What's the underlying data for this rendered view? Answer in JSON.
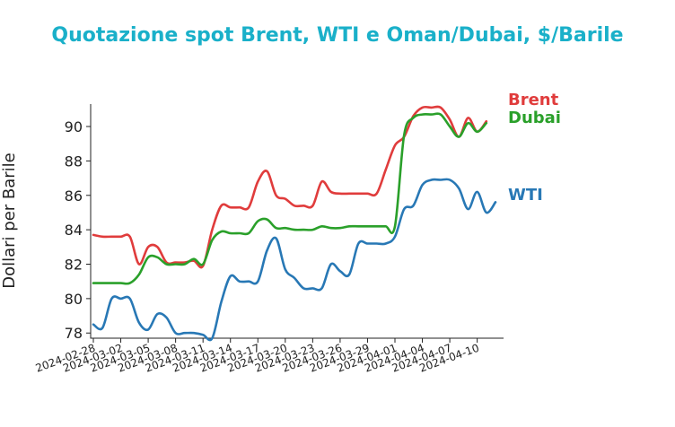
{
  "chart_data": {
    "type": "line",
    "title": "Quotazione spot Brent, WTI e Oman/Dubai, $/Barile",
    "xlabel": "",
    "ylabel": "Dollari per Barile",
    "xlim": [
      "2024-02-28",
      "2024-04-12"
    ],
    "ylim": [
      77.7,
      91.2
    ],
    "yticks": [
      78,
      80,
      82,
      84,
      86,
      88,
      90
    ],
    "xticks": [
      "2024-02-28",
      "2024-03-02",
      "2024-03-05",
      "2024-03-08",
      "2024-03-11",
      "2024-03-14",
      "2024-03-17",
      "2024-03-20",
      "2024-03-23",
      "2024-03-26",
      "2024-03-29",
      "2024-04-01",
      "2024-04-04",
      "2024-04-07",
      "2024-04-10"
    ],
    "grid": false,
    "legend": "right",
    "colors": {
      "Brent": "#e03c3c",
      "WTI": "#2878b5",
      "Dubai": "#2aa02a"
    },
    "series": [
      {
        "name": "Brent",
        "points": [
          [
            "2024-02-28",
            83.7
          ],
          [
            "2024-02-29",
            83.6
          ],
          [
            "2024-03-01",
            83.6
          ],
          [
            "2024-03-02",
            83.6
          ],
          [
            "2024-03-03",
            83.6
          ],
          [
            "2024-03-04",
            82.0
          ],
          [
            "2024-03-05",
            83.0
          ],
          [
            "2024-03-06",
            83.0
          ],
          [
            "2024-03-07",
            82.1
          ],
          [
            "2024-03-08",
            82.1
          ],
          [
            "2024-03-09",
            82.1
          ],
          [
            "2024-03-10",
            82.2
          ],
          [
            "2024-03-11",
            81.9
          ],
          [
            "2024-03-12",
            84.0
          ],
          [
            "2024-03-13",
            85.4
          ],
          [
            "2024-03-14",
            85.3
          ],
          [
            "2024-03-15",
            85.3
          ],
          [
            "2024-03-16",
            85.3
          ],
          [
            "2024-03-17",
            86.8
          ],
          [
            "2024-03-18",
            87.4
          ],
          [
            "2024-03-19",
            86.0
          ],
          [
            "2024-03-20",
            85.8
          ],
          [
            "2024-03-21",
            85.4
          ],
          [
            "2024-03-22",
            85.4
          ],
          [
            "2024-03-23",
            85.4
          ],
          [
            "2024-03-24",
            86.8
          ],
          [
            "2024-03-25",
            86.2
          ],
          [
            "2024-03-26",
            86.1
          ],
          [
            "2024-03-27",
            86.1
          ],
          [
            "2024-03-28",
            86.1
          ],
          [
            "2024-03-29",
            86.1
          ],
          [
            "2024-03-30",
            86.1
          ],
          [
            "2024-03-31",
            87.5
          ],
          [
            "2024-04-01",
            88.9
          ],
          [
            "2024-04-02",
            89.4
          ],
          [
            "2024-04-03",
            90.6
          ],
          [
            "2024-04-04",
            91.1
          ],
          [
            "2024-04-05",
            91.1
          ],
          [
            "2024-04-06",
            91.1
          ],
          [
            "2024-04-07",
            90.4
          ],
          [
            "2024-04-08",
            89.4
          ],
          [
            "2024-04-09",
            90.5
          ],
          [
            "2024-04-10",
            89.7
          ],
          [
            "2024-04-11",
            90.3
          ]
        ]
      },
      {
        "name": "Dubai",
        "points": [
          [
            "2024-02-28",
            80.9
          ],
          [
            "2024-02-29",
            80.9
          ],
          [
            "2024-03-01",
            80.9
          ],
          [
            "2024-03-02",
            80.9
          ],
          [
            "2024-03-03",
            80.9
          ],
          [
            "2024-03-04",
            81.4
          ],
          [
            "2024-03-05",
            82.4
          ],
          [
            "2024-03-06",
            82.4
          ],
          [
            "2024-03-07",
            82.0
          ],
          [
            "2024-03-08",
            82.0
          ],
          [
            "2024-03-09",
            82.0
          ],
          [
            "2024-03-10",
            82.3
          ],
          [
            "2024-03-11",
            82.0
          ],
          [
            "2024-03-12",
            83.4
          ],
          [
            "2024-03-13",
            83.9
          ],
          [
            "2024-03-14",
            83.8
          ],
          [
            "2024-03-15",
            83.8
          ],
          [
            "2024-03-16",
            83.8
          ],
          [
            "2024-03-17",
            84.5
          ],
          [
            "2024-03-18",
            84.6
          ],
          [
            "2024-03-19",
            84.1
          ],
          [
            "2024-03-20",
            84.1
          ],
          [
            "2024-03-21",
            84.0
          ],
          [
            "2024-03-22",
            84.0
          ],
          [
            "2024-03-23",
            84.0
          ],
          [
            "2024-03-24",
            84.2
          ],
          [
            "2024-03-25",
            84.1
          ],
          [
            "2024-03-26",
            84.1
          ],
          [
            "2024-03-27",
            84.2
          ],
          [
            "2024-03-28",
            84.2
          ],
          [
            "2024-03-29",
            84.2
          ],
          [
            "2024-03-30",
            84.2
          ],
          [
            "2024-03-31",
            84.2
          ],
          [
            "2024-04-01",
            84.2
          ],
          [
            "2024-04-02",
            89.5
          ],
          [
            "2024-04-03",
            90.5
          ],
          [
            "2024-04-04",
            90.7
          ],
          [
            "2024-04-05",
            90.7
          ],
          [
            "2024-04-06",
            90.7
          ],
          [
            "2024-04-07",
            90.0
          ],
          [
            "2024-04-08",
            89.4
          ],
          [
            "2024-04-09",
            90.2
          ],
          [
            "2024-04-10",
            89.7
          ],
          [
            "2024-04-11",
            90.2
          ]
        ]
      },
      {
        "name": "WTI",
        "points": [
          [
            "2024-02-28",
            78.5
          ],
          [
            "2024-02-29",
            78.3
          ],
          [
            "2024-03-01",
            80.0
          ],
          [
            "2024-03-02",
            80.0
          ],
          [
            "2024-03-03",
            80.0
          ],
          [
            "2024-03-04",
            78.6
          ],
          [
            "2024-03-05",
            78.2
          ],
          [
            "2024-03-06",
            79.1
          ],
          [
            "2024-03-07",
            78.9
          ],
          [
            "2024-03-08",
            78.0
          ],
          [
            "2024-03-09",
            78.0
          ],
          [
            "2024-03-10",
            78.0
          ],
          [
            "2024-03-11",
            77.9
          ],
          [
            "2024-03-12",
            77.7
          ],
          [
            "2024-03-13",
            79.8
          ],
          [
            "2024-03-14",
            81.3
          ],
          [
            "2024-03-15",
            81.0
          ],
          [
            "2024-03-16",
            81.0
          ],
          [
            "2024-03-17",
            81.0
          ],
          [
            "2024-03-18",
            82.8
          ],
          [
            "2024-03-19",
            83.5
          ],
          [
            "2024-03-20",
            81.7
          ],
          [
            "2024-03-21",
            81.2
          ],
          [
            "2024-03-22",
            80.6
          ],
          [
            "2024-03-23",
            80.6
          ],
          [
            "2024-03-24",
            80.6
          ],
          [
            "2024-03-25",
            82.0
          ],
          [
            "2024-03-26",
            81.6
          ],
          [
            "2024-03-27",
            81.4
          ],
          [
            "2024-03-28",
            83.2
          ],
          [
            "2024-03-29",
            83.2
          ],
          [
            "2024-03-30",
            83.2
          ],
          [
            "2024-03-31",
            83.2
          ],
          [
            "2024-04-01",
            83.6
          ],
          [
            "2024-04-02",
            85.2
          ],
          [
            "2024-04-03",
            85.4
          ],
          [
            "2024-04-04",
            86.6
          ],
          [
            "2024-04-05",
            86.9
          ],
          [
            "2024-04-06",
            86.9
          ],
          [
            "2024-04-07",
            86.9
          ],
          [
            "2024-04-08",
            86.4
          ],
          [
            "2024-04-09",
            85.2
          ],
          [
            "2024-04-10",
            86.2
          ],
          [
            "2024-04-11",
            85.0
          ],
          [
            "2024-04-12",
            85.6
          ]
        ]
      }
    ]
  }
}
